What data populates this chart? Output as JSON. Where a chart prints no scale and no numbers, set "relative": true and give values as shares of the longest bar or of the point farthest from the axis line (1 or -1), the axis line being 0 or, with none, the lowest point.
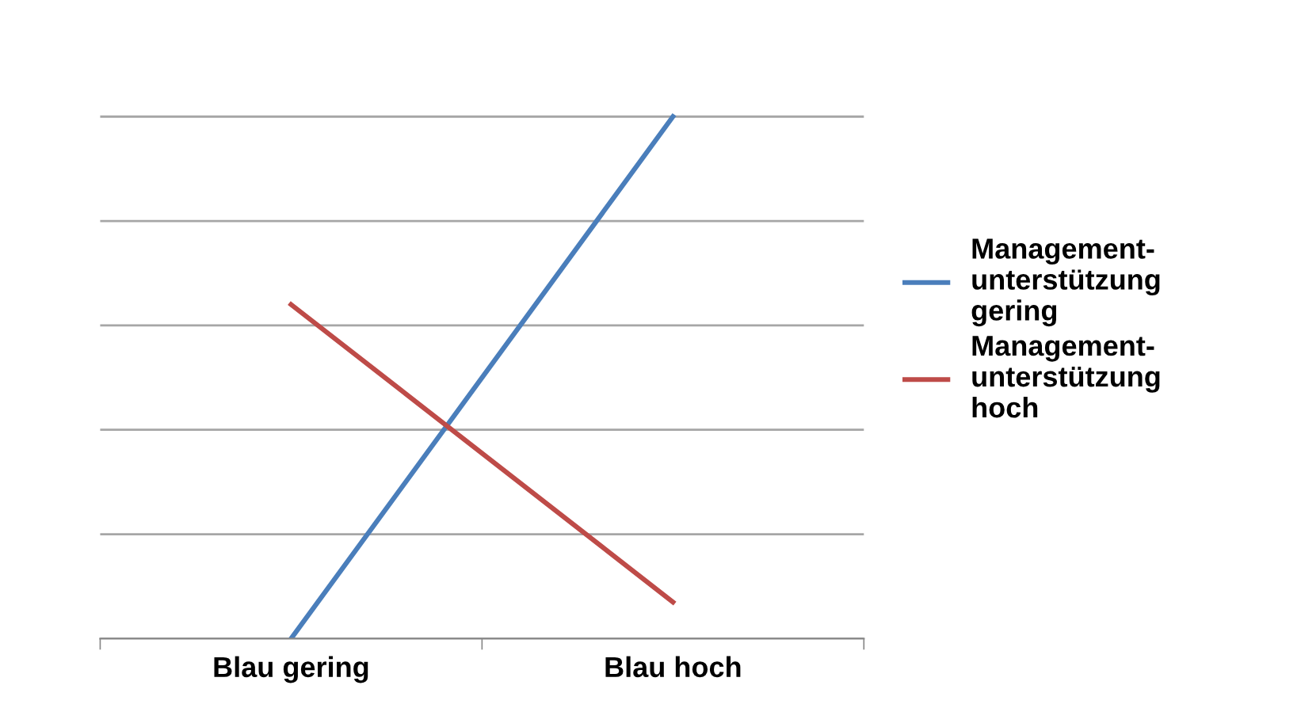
{
  "chart_data": {
    "type": "line",
    "relative": true,
    "categories": [
      "Blau gering",
      "Blau hoch"
    ],
    "series": [
      {
        "name": "Management-\nunterstützung\ngering",
        "color": "#4a7ebb",
        "values": [
          0,
          1
        ]
      },
      {
        "name": "Management-\nunterstützung\nhoch",
        "color": "#be4b48",
        "values": [
          0.64,
          0.07
        ]
      }
    ],
    "grid": "y",
    "legend": "right",
    "marker": "none",
    "line_style": "solid"
  }
}
